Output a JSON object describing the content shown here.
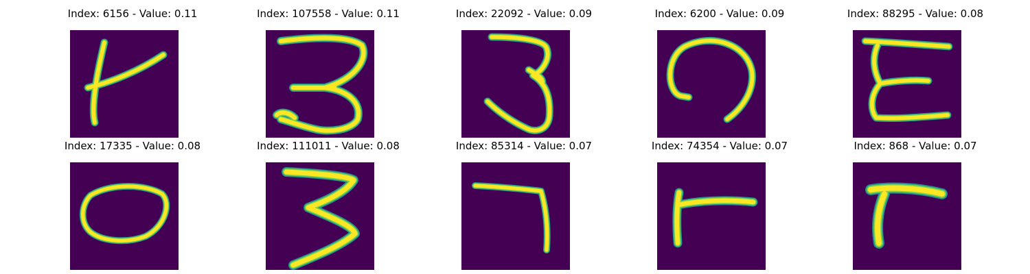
{
  "chart_data": {
    "type": "image-grid",
    "rows": 2,
    "cols": 5,
    "colormap": {
      "background": "#440154",
      "edge": "#21918c",
      "mid": "#7ad151",
      "peak": "#fde725"
    },
    "panels": [
      {
        "index": 6156,
        "value": 0.11,
        "title": "Index: 6156 - Value: 0.11",
        "glyph": "t-shape"
      },
      {
        "index": 107558,
        "value": 0.11,
        "title": "Index: 107558 - Value: 0.11",
        "glyph": "three-wide"
      },
      {
        "index": 22092,
        "value": 0.09,
        "title": "Index: 22092 - Value: 0.09",
        "glyph": "three-narrow"
      },
      {
        "index": 6200,
        "value": 0.09,
        "title": "Index: 6200 - Value: 0.09",
        "glyph": "open-loop"
      },
      {
        "index": 88295,
        "value": 0.08,
        "title": "Index: 88295 - Value: 0.08",
        "glyph": "epsilon"
      },
      {
        "index": 17335,
        "value": 0.08,
        "title": "Index: 17335 - Value: 0.08",
        "glyph": "zero"
      },
      {
        "index": 111011,
        "value": 0.08,
        "title": "Index: 111011 - Value: 0.08",
        "glyph": "three-zigzag"
      },
      {
        "index": 85314,
        "value": 0.07,
        "title": "Index: 85314 - Value: 0.07",
        "glyph": "seven"
      },
      {
        "index": 74354,
        "value": 0.07,
        "title": "Index: 74354 - Value: 0.07",
        "glyph": "r-shape"
      },
      {
        "index": 868,
        "value": 0.07,
        "title": "Index: 868 - Value: 0.07",
        "glyph": "r-thick"
      }
    ]
  }
}
